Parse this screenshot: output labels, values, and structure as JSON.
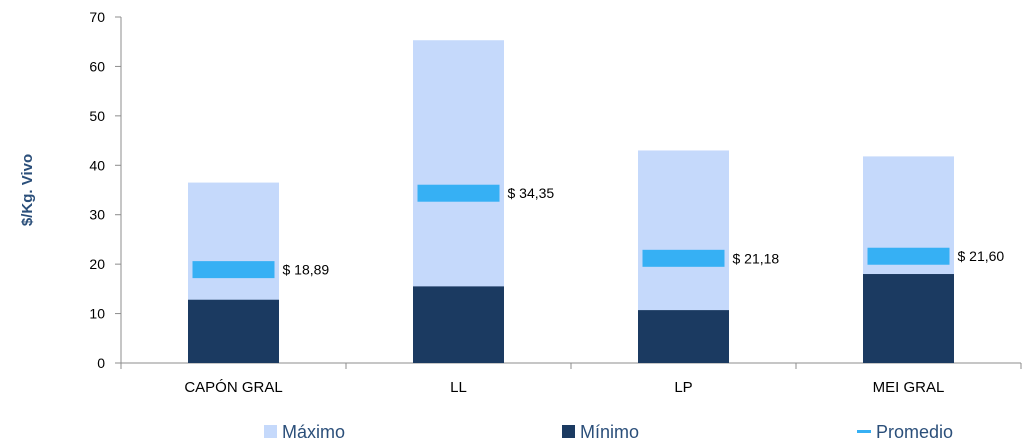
{
  "chart_data": {
    "type": "bar",
    "categories": [
      "CAPÓN GRAL",
      "LL",
      "LP",
      "MEI GRAL"
    ],
    "series": [
      {
        "name": "Máximo",
        "values": [
          36.5,
          65.3,
          43.0,
          41.8
        ],
        "color": "#c5d9fb"
      },
      {
        "name": "Mínimo",
        "values": [
          12.8,
          15.5,
          10.7,
          18.0
        ],
        "color": "#1b3a61"
      },
      {
        "name": "Promedio",
        "values": [
          18.89,
          34.35,
          21.18,
          21.6
        ],
        "color": "#36b0f4"
      }
    ],
    "data_labels": [
      "$ 18,89",
      "$ 34,35",
      "$ 21,18",
      "$ 21,60"
    ],
    "ylabel": "$/Kg. Vivo",
    "ylim": [
      0,
      70
    ],
    "yticks": [
      0,
      10,
      20,
      30,
      40,
      50,
      60,
      70
    ],
    "ytick_labels": [
      "0",
      "10",
      "20",
      "30",
      "40",
      "50",
      "60",
      "70"
    ],
    "grid": false,
    "legend_position": "bottom",
    "label_color": "#2b4f7a",
    "legend_text_color": "#2b4f7a",
    "axis_color": "#8c8c8c"
  }
}
